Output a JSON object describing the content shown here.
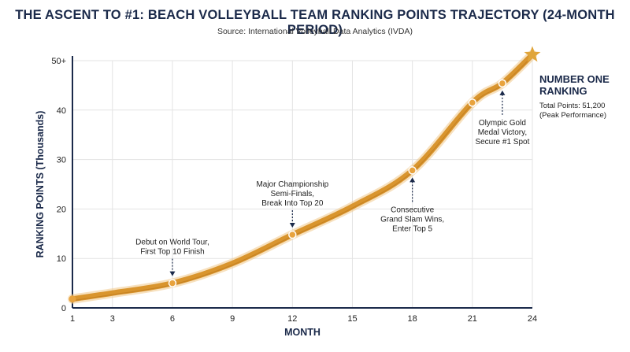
{
  "chart_data": {
    "type": "line",
    "title": "THE ASCENT TO #1: BEACH VOLLEYBALL TEAM RANKING POINTS TRAJECTORY (24-MONTH PERIOD)",
    "subtitle": "Source: International Volleyball Data Analytics (IVDA)",
    "xlabel": "MONTH",
    "ylabel": "RANKING POINTS (Thousands)",
    "xlim": [
      1,
      24
    ],
    "ylim": [
      0,
      50
    ],
    "x_ticks": [
      "1",
      "3",
      "6",
      "9",
      "12",
      "15",
      "18",
      "21",
      "24"
    ],
    "y_ticks": [
      "0",
      "10",
      "20",
      "30",
      "40",
      "50+"
    ],
    "grid": true,
    "series": [
      {
        "x": [
          1,
          3,
          6,
          9,
          12,
          15,
          18,
          21,
          22.5,
          24
        ],
        "values": [
          1.8,
          3.0,
          5.0,
          9.0,
          14.8,
          20.5,
          27.8,
          41.5,
          45.4,
          51.2
        ]
      }
    ],
    "markers": [
      {
        "x": 1,
        "y": 1.8
      },
      {
        "x": 6,
        "y": 5.0
      },
      {
        "x": 12,
        "y": 14.8
      },
      {
        "x": 18,
        "y": 27.8
      },
      {
        "x": 21,
        "y": 41.5
      },
      {
        "x": 22.5,
        "y": 45.4
      }
    ],
    "annotations": [
      {
        "lines": [
          "Debut on World Tour,",
          "First Top 10 Finish"
        ],
        "x": 6,
        "y": 5.0,
        "position": "above"
      },
      {
        "lines": [
          "Major Championship",
          "Semi-Finals,",
          "Break Into Top 20"
        ],
        "x": 12,
        "y": 14.8,
        "position": "above"
      },
      {
        "lines": [
          "Consecutive",
          "Grand Slam Wins,",
          "Enter Top 5"
        ],
        "x": 18,
        "y": 27.8,
        "position": "below"
      },
      {
        "lines": [
          "Olympic Gold",
          "Medal Victory,",
          "Secure #1 Spot"
        ],
        "x": 22.5,
        "y": 45.4,
        "position": "below"
      }
    ],
    "final_point": {
      "x": 24,
      "y": 51.2,
      "title_lines": [
        "NUMBER ONE",
        "RANKING"
      ],
      "detail_lines": [
        "Total Points: 51,200",
        "(Peak Performance)"
      ]
    },
    "colors": {
      "line": "#d9952e",
      "marker_fill": "#e8a33e",
      "star": "#e0a53a",
      "axis": "#1b2a4a",
      "grid": "#e3e3e3",
      "title": "#1b2a4a"
    }
  }
}
